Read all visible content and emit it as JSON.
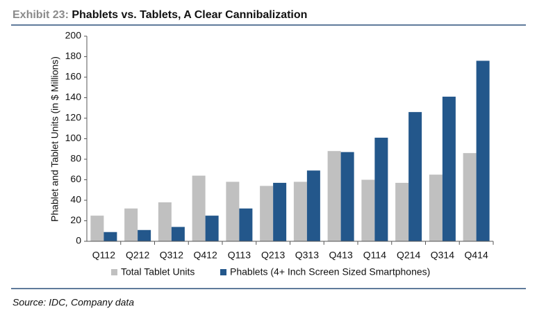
{
  "exhibit": "Exhibit 23:",
  "title": "Phablets vs. Tablets, A Clear Cannibalization",
  "source": "Source: IDC, Company data",
  "chart_data": {
    "type": "bar",
    "y_label": "Phablet and Tablet Units (in $ Millions)",
    "categories": [
      "Q112",
      "Q212",
      "Q312",
      "Q412",
      "Q113",
      "Q213",
      "Q313",
      "Q413",
      "Q114",
      "Q214",
      "Q314",
      "Q414"
    ],
    "series": [
      {
        "name": "Total Tablet Units",
        "color": "#c0c0c0",
        "values": [
          25,
          32,
          38,
          64,
          58,
          54,
          58,
          88,
          60,
          57,
          65,
          86
        ]
      },
      {
        "name": "Phablets (4+ Inch Screen Sized Smartphones)",
        "color": "#23578b",
        "values": [
          9,
          11,
          14,
          25,
          32,
          57,
          69,
          87,
          101,
          126,
          141,
          176
        ]
      }
    ],
    "ylim": [
      0,
      200
    ],
    "yticks": [
      0,
      20,
      40,
      60,
      80,
      100,
      120,
      140,
      160,
      180,
      200
    ]
  }
}
